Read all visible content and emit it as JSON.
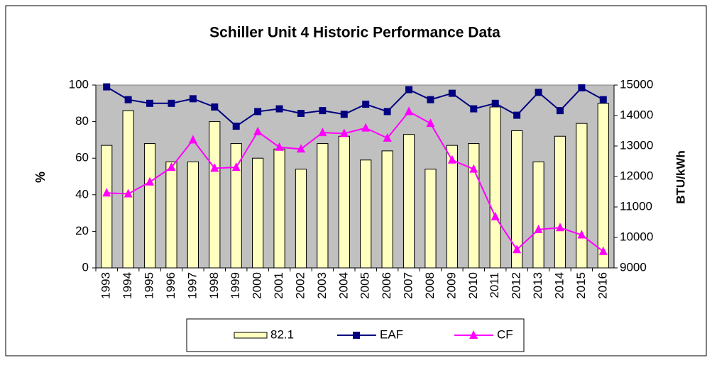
{
  "chart_data": {
    "type": "combo",
    "title": "Schiller Unit 4 Historic Performance Data",
    "y_label": "%",
    "y2_label": "BTU/kWh",
    "categories": [
      "1993",
      "1994",
      "1995",
      "1996",
      "1997",
      "1998",
      "1999",
      "2000",
      "2001",
      "2002",
      "2003",
      "2004",
      "2005",
      "2006",
      "2007",
      "2008",
      "2009",
      "2010",
      "2011",
      "2012",
      "2013",
      "2014",
      "2015",
      "2016"
    ],
    "series": [
      {
        "name": "82.1",
        "type": "bar",
        "axis": "y2",
        "color": "#ffffc0",
        "values": [
          13020,
          14160,
          13080,
          12480,
          12480,
          13800,
          13080,
          12600,
          12900,
          12240,
          13080,
          13320,
          12540,
          12840,
          13380,
          12240,
          13020,
          13080,
          14280,
          13500,
          12480,
          13320,
          13740,
          14400
        ]
      },
      {
        "name": "EAF",
        "type": "line",
        "axis": "y",
        "color": "#000080",
        "marker": "square",
        "values": [
          99,
          92,
          90,
          90,
          92.5,
          88,
          77.5,
          85.5,
          87,
          84.5,
          86,
          84,
          89.5,
          85.5,
          97.5,
          92,
          95.5,
          87,
          90,
          83.5,
          96,
          86,
          98.5,
          92
        ]
      },
      {
        "name": "CF",
        "type": "line",
        "axis": "y",
        "color": "#ff00ff",
        "marker": "triangle",
        "values": [
          41,
          40.5,
          47,
          55,
          70,
          54.5,
          55,
          74.5,
          66,
          65,
          74,
          73.5,
          76.5,
          71,
          85.5,
          79,
          59,
          54,
          28,
          10,
          21,
          22,
          18,
          9
        ]
      }
    ],
    "ylim": [
      0,
      100
    ],
    "yticks": [
      0,
      20,
      40,
      60,
      80,
      100
    ],
    "y2lim": [
      9000,
      15000
    ],
    "y2ticks": [
      9000,
      10000,
      11000,
      12000,
      13000,
      14000,
      15000
    ],
    "grid": false,
    "legend": "bottom"
  }
}
